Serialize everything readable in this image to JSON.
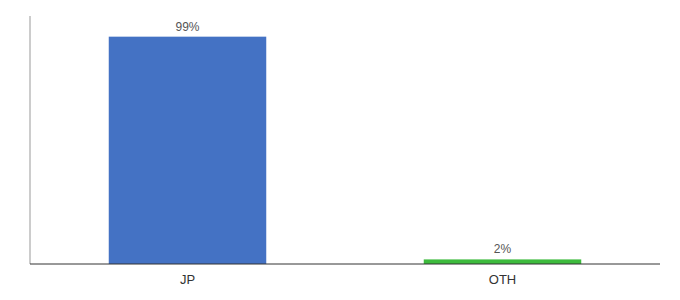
{
  "chart_data": {
    "type": "bar",
    "categories": [
      "JP",
      "OTH"
    ],
    "values": [
      99,
      2
    ],
    "value_labels": [
      "99%",
      "2%"
    ],
    "colors": [
      "#4472c4",
      "#3dbb3d"
    ],
    "ylim": [
      0,
      108
    ],
    "yticks": [],
    "grid": false,
    "data_labels": true,
    "tick_labels": "x"
  }
}
